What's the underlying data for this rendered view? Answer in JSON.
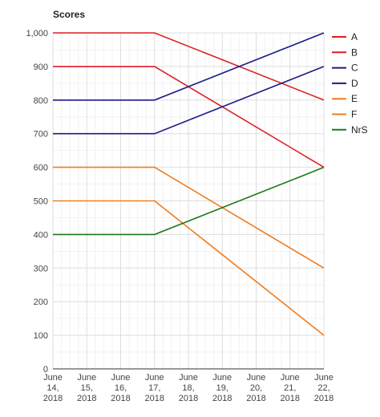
{
  "chart_data": {
    "type": "line",
    "title": "Scores",
    "xlabel": "",
    "ylabel": "",
    "x": [
      "June 14, 2018",
      "June 15, 2018",
      "June 16, 2018",
      "June 17, 2018",
      "June 18, 2018",
      "June 19, 2018",
      "June 20, 2018",
      "June 21, 2018",
      "June 22, 2018"
    ],
    "x_tick_labels": [
      [
        "June",
        "14,",
        "2018"
      ],
      [
        "June",
        "15,",
        "2018"
      ],
      [
        "June",
        "16,",
        "2018"
      ],
      [
        "June",
        "17,",
        "2018"
      ],
      [
        "June",
        "18,",
        "2018"
      ],
      [
        "June",
        "19,",
        "2018"
      ],
      [
        "June",
        "20,",
        "2018"
      ],
      [
        "June",
        "21,",
        "2018"
      ],
      [
        "June",
        "22,",
        "2018"
      ]
    ],
    "y_ticks": [
      0,
      100,
      200,
      300,
      400,
      500,
      600,
      700,
      800,
      900,
      1000
    ],
    "y_tick_labels": [
      "0",
      "100",
      "200",
      "300",
      "400",
      "500",
      "600",
      "700",
      "800",
      "900",
      "1,000"
    ],
    "ylim": [
      0,
      1000
    ],
    "grid": true,
    "legend_position": "right",
    "series": [
      {
        "name": "A",
        "color": "#dc1f26",
        "points": [
          [
            "June 14, 2018",
            1000
          ],
          [
            "June 17, 2018",
            1000
          ],
          [
            "June 22, 2018",
            800
          ]
        ]
      },
      {
        "name": "B",
        "color": "#dc1f26",
        "points": [
          [
            "June 14, 2018",
            900
          ],
          [
            "June 17, 2018",
            900
          ],
          [
            "June 22, 2018",
            600
          ]
        ]
      },
      {
        "name": "C",
        "color": "#1a1a8c",
        "points": [
          [
            "June 14, 2018",
            800
          ],
          [
            "June 17, 2018",
            800
          ],
          [
            "June 22, 2018",
            1000
          ]
        ]
      },
      {
        "name": "D",
        "color": "#1a1a8c",
        "points": [
          [
            "June 14, 2018",
            700
          ],
          [
            "June 17, 2018",
            700
          ],
          [
            "June 22, 2018",
            900
          ]
        ]
      },
      {
        "name": "E",
        "color": "#f07c1c",
        "points": [
          [
            "June 14, 2018",
            600
          ],
          [
            "June 17, 2018",
            600
          ],
          [
            "June 22, 2018",
            300
          ]
        ]
      },
      {
        "name": "F",
        "color": "#f07c1c",
        "points": [
          [
            "June 14, 2018",
            500
          ],
          [
            "June 17, 2018",
            500
          ],
          [
            "June 22, 2018",
            100
          ]
        ]
      },
      {
        "name": "NrS",
        "color": "#1c7a1c",
        "points": [
          [
            "June 14, 2018",
            400
          ],
          [
            "June 17, 2018",
            400
          ],
          [
            "June 22, 2018",
            600
          ]
        ]
      }
    ]
  }
}
